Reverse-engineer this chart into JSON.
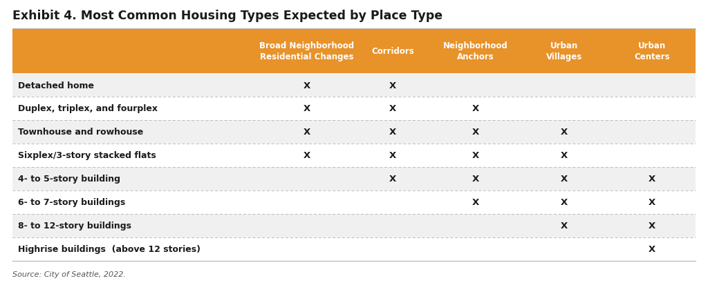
{
  "title": "Exhibit 4. Most Common Housing Types Expected by Place Type",
  "source": "Source: City of Seattle, 2022.",
  "header_bg_color": "#E8922A",
  "header_text_color": "#FFFFFF",
  "row_bg_even": "#F0F0F0",
  "row_bg_odd": "#FFFFFF",
  "border_color": "#BBBBBB",
  "text_color": "#1a1a1a",
  "source_color": "#555555",
  "columns": [
    "Broad Neighborhood\nResidential Changes",
    "Corridors",
    "Neighborhood\nAnchors",
    "Urban\nVillages",
    "Urban\nCenters"
  ],
  "rows": [
    "Detached home",
    "Duplex, triplex, and fourplex",
    "Townhouse and rowhouse",
    "Sixplex/3-story stacked flats",
    "4- to 5-story building",
    "6- to 7-story buildings",
    "8- to 12-story buildings",
    "Highrise buildings  (above 12 stories)"
  ],
  "marks": [
    [
      1,
      1,
      0,
      0,
      0
    ],
    [
      1,
      1,
      1,
      0,
      0
    ],
    [
      1,
      1,
      1,
      1,
      0
    ],
    [
      1,
      1,
      1,
      1,
      0
    ],
    [
      0,
      1,
      1,
      1,
      1
    ],
    [
      0,
      0,
      1,
      1,
      1
    ],
    [
      0,
      0,
      0,
      1,
      1
    ],
    [
      0,
      0,
      0,
      0,
      1
    ]
  ],
  "figsize": [
    10.24,
    4.27
  ],
  "dpi": 100,
  "fig_bg": "#FFFFFF",
  "title_fontsize": 12.5,
  "header_fontsize": 8.5,
  "row_fontsize": 9.0,
  "mark_fontsize": 9.5,
  "source_fontsize": 8.0
}
